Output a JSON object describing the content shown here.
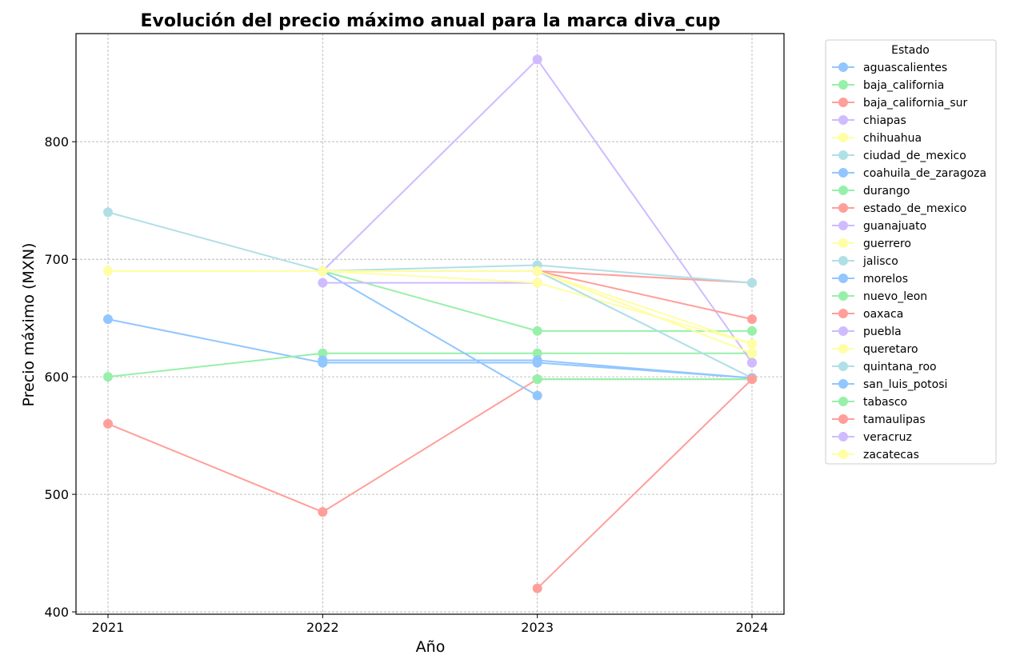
{
  "chart_data": {
    "type": "line",
    "title": "Evolución del precio máximo anual para la marca diva_cup",
    "xlabel": "Año",
    "ylabel": "Precio máximo (MXN)",
    "x": [
      "2021",
      "2022",
      "2023",
      "2024"
    ],
    "ylim": [
      398,
      892
    ],
    "yticks": [
      400,
      500,
      600,
      700,
      800
    ],
    "grid": true,
    "legend": {
      "title": "Estado",
      "placement": "outside-top-right"
    },
    "series": [
      {
        "name": "aguascalientes",
        "color": "#92c6ff",
        "values": [
          649,
          612,
          612,
          599
        ]
      },
      {
        "name": "baja_california",
        "color": "#97f0aa",
        "values": [
          600,
          620,
          620,
          620
        ]
      },
      {
        "name": "baja_california_sur",
        "color": "#ff9f9a",
        "values": [
          560,
          485,
          598,
          598
        ]
      },
      {
        "name": "chiapas",
        "color": "#d0bbff",
        "values": [
          null,
          690,
          870,
          612
        ]
      },
      {
        "name": "chihuahua",
        "color": "#fffea3",
        "values": [
          690,
          690,
          690,
          620
        ]
      },
      {
        "name": "ciudad_de_mexico",
        "color": "#b0e0e6",
        "values": [
          740,
          690,
          690,
          599
        ]
      },
      {
        "name": "coahuila_de_zaragoza",
        "color": "#92c6ff",
        "values": [
          null,
          690,
          584,
          null
        ]
      },
      {
        "name": "durango",
        "color": "#97f0aa",
        "values": [
          null,
          690,
          639,
          639
        ]
      },
      {
        "name": "estado_de_mexico",
        "color": "#ff9f9a",
        "values": [
          null,
          null,
          690,
          680
        ]
      },
      {
        "name": "guanajuato",
        "color": "#d0bbff",
        "values": [
          null,
          680,
          680,
          null
        ]
      },
      {
        "name": "guerrero",
        "color": "#fffea3",
        "values": [
          690,
          690,
          680,
          628
        ]
      },
      {
        "name": "jalisco",
        "color": "#b0e0e6",
        "values": [
          null,
          690,
          695,
          680
        ]
      },
      {
        "name": "morelos",
        "color": "#92c6ff",
        "values": [
          null,
          612,
          612,
          null
        ]
      },
      {
        "name": "nuevo_leon",
        "color": "#97f0aa",
        "values": [
          null,
          null,
          598,
          598
        ]
      },
      {
        "name": "oaxaca",
        "color": "#ff9f9a",
        "values": [
          null,
          null,
          690,
          649
        ]
      },
      {
        "name": "puebla",
        "color": "#d0bbff",
        "values": [
          null,
          null,
          null,
          612
        ]
      },
      {
        "name": "queretaro",
        "color": "#fffea3",
        "values": [
          null,
          null,
          690,
          620
        ]
      },
      {
        "name": "quintana_roo",
        "color": "#b0e0e6",
        "values": [
          null,
          null,
          690,
          599
        ]
      },
      {
        "name": "san_luis_potosi",
        "color": "#92c6ff",
        "values": [
          null,
          614,
          614,
          599
        ]
      },
      {
        "name": "tabasco",
        "color": "#97f0aa",
        "values": [
          null,
          null,
          598,
          598
        ]
      },
      {
        "name": "tamaulipas",
        "color": "#ff9f9a",
        "values": [
          null,
          null,
          420,
          598
        ]
      },
      {
        "name": "veracruz",
        "color": "#d0bbff",
        "values": [
          null,
          null,
          null,
          612
        ]
      },
      {
        "name": "zacatecas",
        "color": "#fffea3",
        "values": [
          null,
          690,
          690,
          628
        ]
      }
    ]
  }
}
